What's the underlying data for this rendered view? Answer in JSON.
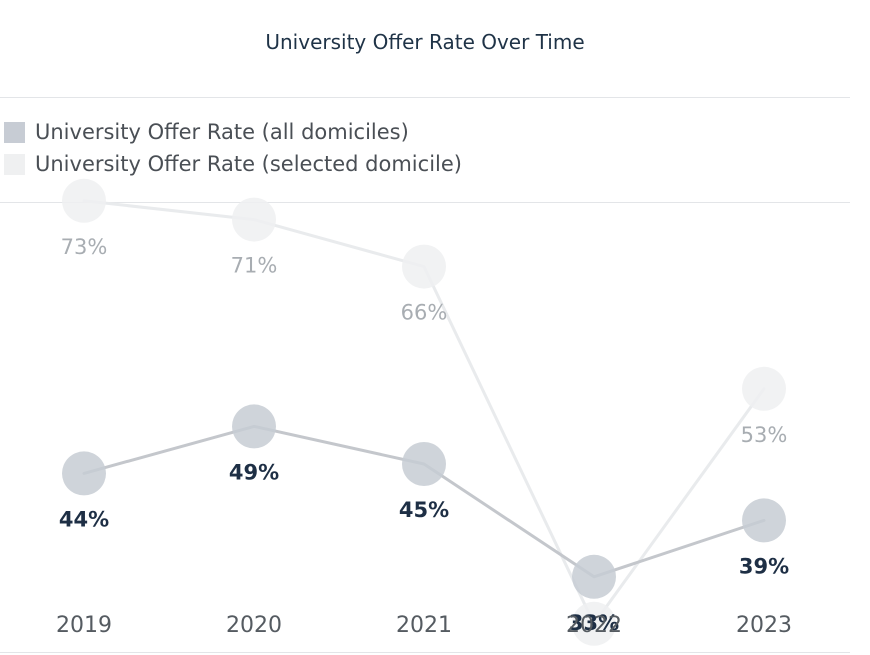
{
  "chart_data": {
    "type": "line",
    "title": "University Offer Rate Over Time",
    "categories": [
      "2019",
      "2020",
      "2021",
      "2022",
      "2023"
    ],
    "series": [
      {
        "name": "University Offer Rate (all domiciles)",
        "values": [
          44,
          49,
          45,
          33,
          39
        ],
        "labels": [
          "44%",
          "49%",
          "45%",
          "33%",
          "39%"
        ],
        "color": "#c7ccd4",
        "line_color": "#c4c7cc",
        "label_color": "#1e2f45"
      },
      {
        "name": "University Offer Rate (selected domicile)",
        "values": [
          73,
          71,
          66,
          28,
          53
        ],
        "labels": [
          "73%",
          "71%",
          "66%",
          "",
          "53%"
        ],
        "color": "#eff0f1",
        "line_color": "#e9ebed",
        "label_color": "#a8adb2"
      }
    ],
    "legend_position": "top-left",
    "grid": false
  }
}
